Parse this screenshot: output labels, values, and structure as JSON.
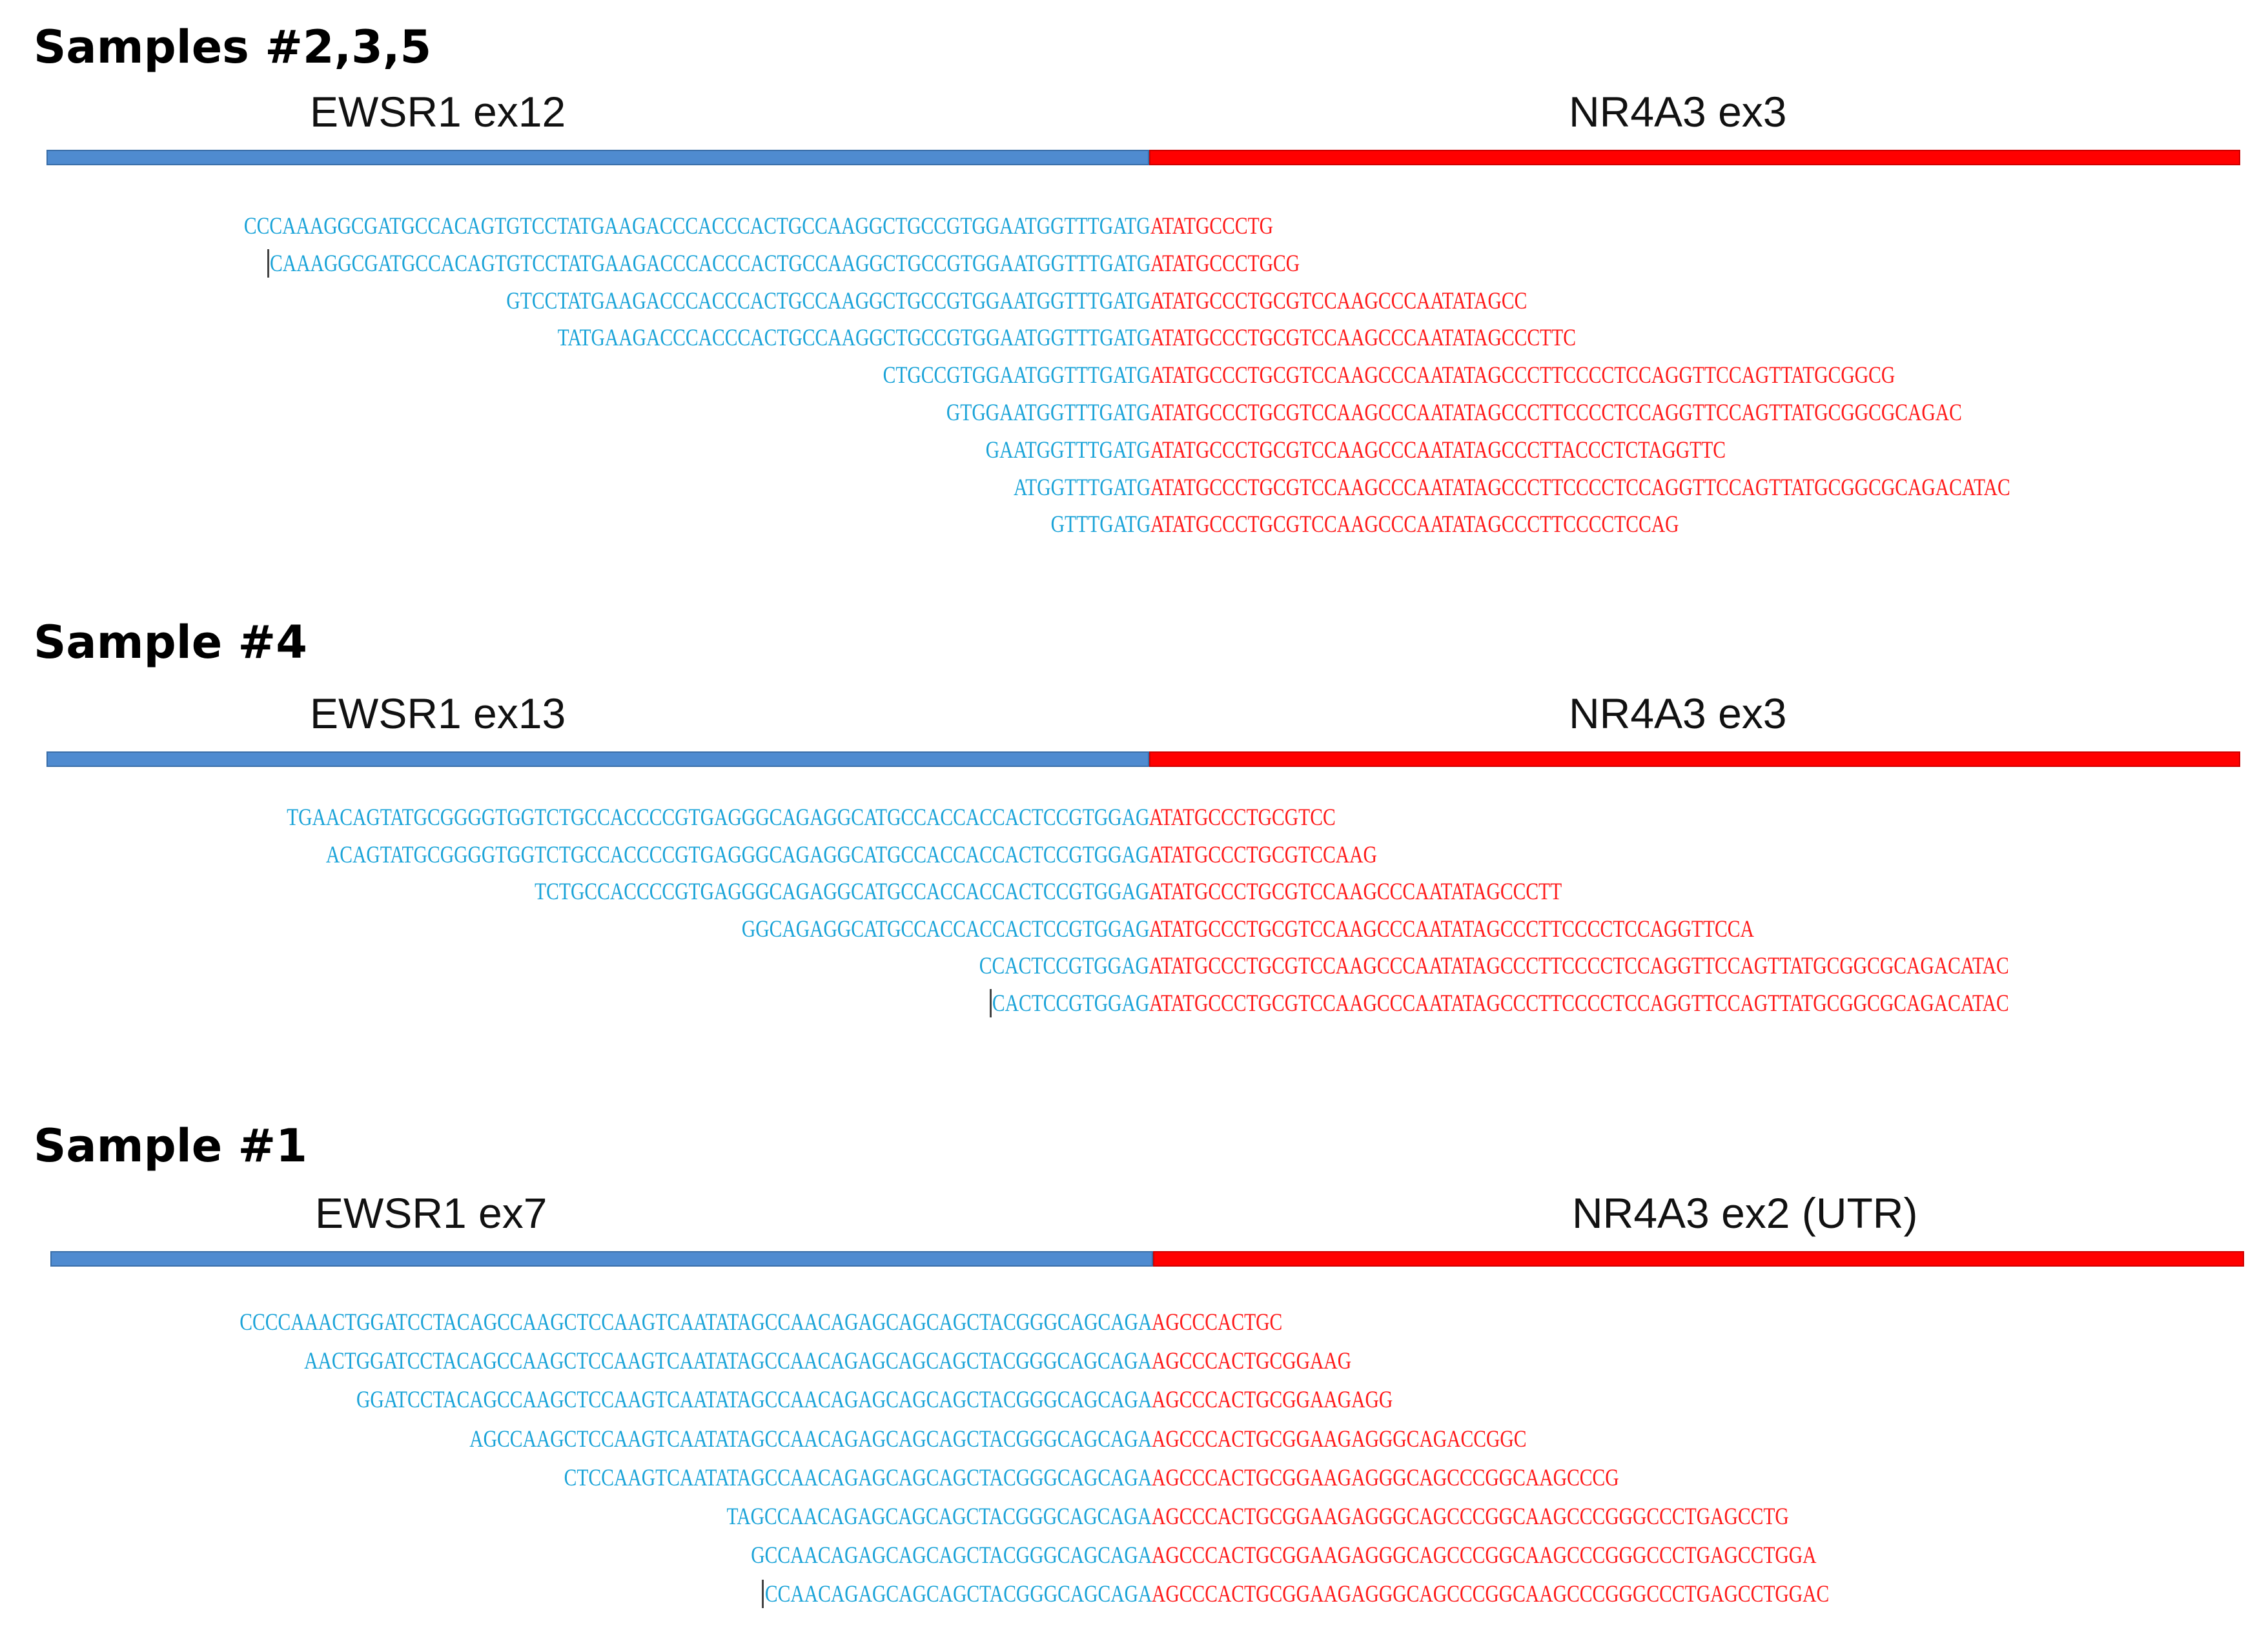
{
  "sections": [
    {
      "heading": "Samples #2,3,5",
      "left_label": "EWSR1 ex12",
      "right_label": "NR4A3 ex3",
      "reads": [
        {
          "ewsr1": "CCCAAAGGCGATGCCACAGTGTCCTATGAAGACCCACCCACTGCCAAGGCTGCCGTGGAATGGTTTGATG",
          "nr4a3": "ATATGCCCTG"
        },
        {
          "ewsr1": "CAAAGGCGATGCCACAGTGTCCTATGAAGACCCACCCACTGCCAAGGCTGCCGTGGAATGGTTTGATG",
          "nr4a3": "ATATGCCCTGCG",
          "cursor": true
        },
        {
          "ewsr1": "GTCCTATGAAGACCCACCCACTGCCAAGGCTGCCGTGGAATGGTTTGATG",
          "nr4a3": "ATATGCCCTGCGTCCAAGCCCAATATAGCC"
        },
        {
          "ewsr1": "TATGAAGACCCACCCACTGCCAAGGCTGCCGTGGAATGGTTTGATG",
          "nr4a3": "ATATGCCCTGCGTCCAAGCCCAATATAGCCCTTC"
        },
        {
          "ewsr1": "CTGCCGTGGAATGGTTTGATG",
          "nr4a3": "ATATGCCCTGCGTCCAAGCCCAATATAGCCCTTCCCCTCCAGGTTCCAGTTATGCGGCG"
        },
        {
          "ewsr1": "GTGGAATGGTTTGATG",
          "nr4a3": "ATATGCCCTGCGTCCAAGCCCAATATAGCCCTTCCCCTCCAGGTTCCAGTTATGCGGCGCAGAC"
        },
        {
          "ewsr1": "GAATGGTTTGATG",
          "nr4a3": "ATATGCCCTGCGTCCAAGCCCAATATAGCCCTTACCCTCTAGGTTC"
        },
        {
          "ewsr1": "ATGGTTTGATG",
          "nr4a3": "ATATGCCCTGCGTCCAAGCCCAATATAGCCCTTCCCCTCCAGGTTCCAGTTATGCGGCGCAGACATAC"
        },
        {
          "ewsr1": "GTTTGATG",
          "nr4a3": "ATATGCCCTGCGTCCAAGCCCAATATAGCCCTTCCCCTCCAG"
        }
      ]
    },
    {
      "heading": "Sample #4",
      "left_label": "EWSR1 ex13",
      "right_label": "NR4A3 ex3",
      "reads": [
        {
          "ewsr1": "TGAACAGTATGCGGGGTGGTCTGCCACCCCGTGAGGGCAGAGGCATGCCACCACCACTCCGTGGAG",
          "nr4a3": "ATATGCCCTGCGTCC"
        },
        {
          "ewsr1": "ACAGTATGCGGGGTGGTCTGCCACCCCGTGAGGGCAGAGGCATGCCACCACCACTCCGTGGAG",
          "nr4a3": "ATATGCCCTGCGTCCAAG"
        },
        {
          "ewsr1": "TCTGCCACCCCGTGAGGGCAGAGGCATGCCACCACCACTCCGTGGAG",
          "nr4a3": "ATATGCCCTGCGTCCAAGCCCAATATAGCCCTT"
        },
        {
          "ewsr1": "GGCAGAGGCATGCCACCACCACTCCGTGGAG",
          "nr4a3": "ATATGCCCTGCGTCCAAGCCCAATATAGCCCTTCCCCTCCAGGTTCCA"
        },
        {
          "ewsr1": "CCACTCCGTGGAG",
          "nr4a3": "ATATGCCCTGCGTCCAAGCCCAATATAGCCCTTCCCCTCCAGGTTCCAGTTATGCGGCGCAGACATAC"
        },
        {
          "ewsr1": "CACTCCGTGGAG",
          "nr4a3": "ATATGCCCTGCGTCCAAGCCCAATATAGCCCTTCCCCTCCAGGTTCCAGTTATGCGGCGCAGACATAC",
          "cursor": true
        }
      ]
    },
    {
      "heading": "Sample #1",
      "left_label": "EWSR1 ex7",
      "right_label": "NR4A3 ex2 (UTR)",
      "reads": [
        {
          "ewsr1": "CCCCAAACTGGATCCTACAGCCAAGCTCCAAGTCAATATAGCCAACAGAGCAGCAGCTACGGGCAGCAGA",
          "nr4a3": "AGCCCACTGC"
        },
        {
          "ewsr1": "AACTGGATCCTACAGCCAAGCTCCAAGTCAATATAGCCAACAGAGCAGCAGCTACGGGCAGCAGA",
          "nr4a3": "AGCCCACTGCGGAAG"
        },
        {
          "ewsr1": "GGATCCTACAGCCAAGCTCCAAGTCAATATAGCCAACAGAGCAGCAGCTACGGGCAGCAGA",
          "nr4a3": "AGCCCACTGCGGAAGAGG"
        },
        {
          "ewsr1": "AGCCAAGCTCCAAGTCAATATAGCCAACAGAGCAGCAGCTACGGGCAGCAGA",
          "nr4a3": "AGCCCACTGCGGAAGAGGGCAGACCGGC"
        },
        {
          "ewsr1": "CTCCAAGTCAATATAGCCAACAGAGCAGCAGCTACGGGCAGCAGA",
          "nr4a3": "AGCCCACTGCGGAAGAGGGCAGCCCGGCAAGCCCG"
        },
        {
          "ewsr1": "TAGCCAACAGAGCAGCAGCTACGGGCAGCAGA",
          "nr4a3": "AGCCCACTGCGGAAGAGGGCAGCCCGGCAAGCCCGGGCCCTGAGCCTG"
        },
        {
          "ewsr1": "GCCAACAGAGCAGCAGCTACGGGCAGCAGA",
          "nr4a3": "AGCCCACTGCGGAAGAGGGCAGCCCGGCAAGCCCGGGCCCTGAGCCTGGA"
        },
        {
          "ewsr1": "CCAACAGAGCAGCAGCTACGGGCAGCAGA",
          "nr4a3": "AGCCCACTGCGGAAGAGGGCAGCCCGGCAAGCCCGGGCCCTGAGCCTGGAC",
          "cursor": true
        }
      ]
    }
  ],
  "colors": {
    "ewsr1_text": "#1aa3d8",
    "nr4a3_text": "#ff1a1a",
    "ewsr1_bar": "#4f8bd0",
    "nr4a3_bar": "#ff0000"
  }
}
